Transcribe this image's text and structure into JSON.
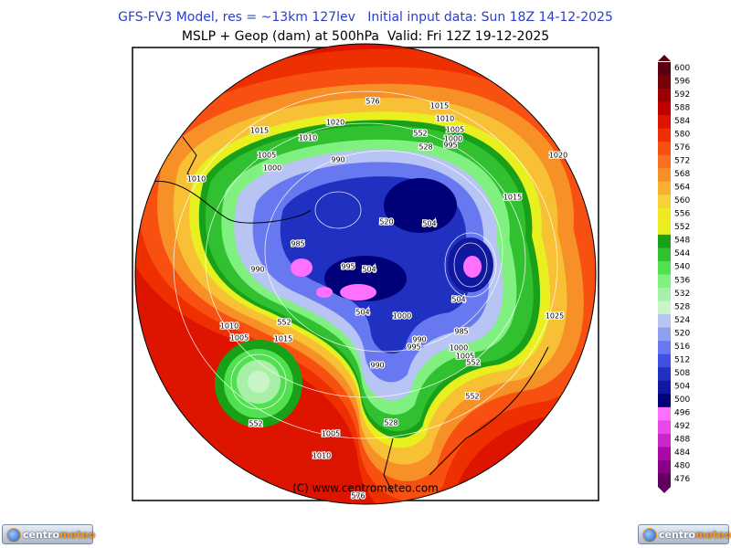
{
  "header": {
    "title_line1": "GFS-FV3 Model, res = ~13km 127lev   Initial input data: Sun 18Z 14-12-2025",
    "title_line2": "MSLP + Geop (dam) at 500hPa  Valid: Fri 12Z 19-12-2025"
  },
  "legend": {
    "items": [
      {
        "value": 600,
        "color": "#5a0010"
      },
      {
        "value": 596,
        "color": "#780008"
      },
      {
        "value": 592,
        "color": "#9a0000"
      },
      {
        "value": 588,
        "color": "#c00000"
      },
      {
        "value": 584,
        "color": "#dc1400"
      },
      {
        "value": 580,
        "color": "#ee3000"
      },
      {
        "value": 576,
        "color": "#f85010"
      },
      {
        "value": 572,
        "color": "#f87020"
      },
      {
        "value": 568,
        "color": "#f89028"
      },
      {
        "value": 564,
        "color": "#f8b030"
      },
      {
        "value": 560,
        "color": "#f8d038"
      },
      {
        "value": 556,
        "color": "#f0e820"
      },
      {
        "value": 552,
        "color": "#e8f020"
      },
      {
        "value": 548,
        "color": "#18a018"
      },
      {
        "value": 544,
        "color": "#30c030"
      },
      {
        "value": 540,
        "color": "#50e050"
      },
      {
        "value": 536,
        "color": "#80f080"
      },
      {
        "value": 532,
        "color": "#a8f0a8"
      },
      {
        "value": 528,
        "color": "#c8f4c8"
      },
      {
        "value": 524,
        "color": "#b8c4f4"
      },
      {
        "value": 520,
        "color": "#90a0f0"
      },
      {
        "value": 516,
        "color": "#6878f0"
      },
      {
        "value": 512,
        "color": "#4050e0"
      },
      {
        "value": 508,
        "color": "#2030c0"
      },
      {
        "value": 504,
        "color": "#1018a0"
      },
      {
        "value": 500,
        "color": "#000078"
      },
      {
        "value": 496,
        "color": "#ff70ff"
      },
      {
        "value": 492,
        "color": "#e848e8"
      },
      {
        "value": 488,
        "color": "#c828c8"
      },
      {
        "value": 484,
        "color": "#a808a8"
      },
      {
        "value": 480,
        "color": "#880088"
      },
      {
        "value": 476,
        "color": "#600060"
      }
    ]
  },
  "contour_labels": [
    "576",
    "1015",
    "1020",
    "1010",
    "1015",
    "552",
    "1005",
    "1010",
    "1000",
    "995",
    "528",
    "1005",
    "1020",
    "1000",
    "990",
    "1010",
    "1015",
    "520",
    "504",
    "985",
    "990",
    "995",
    "504",
    "504",
    "504",
    "1000",
    "1025",
    "1010",
    "552",
    "1005",
    "1015",
    "985",
    "990",
    "995",
    "1000",
    "1005",
    "552",
    "990",
    "552",
    "552",
    "528",
    "1005",
    "1010",
    "576"
  ],
  "credit": "(C) www.centrometeo.com",
  "logos": [
    {
      "part1": "centro",
      "part2": "meteo"
    },
    {
      "part1": "centro",
      "part2": "meteo"
    }
  ]
}
